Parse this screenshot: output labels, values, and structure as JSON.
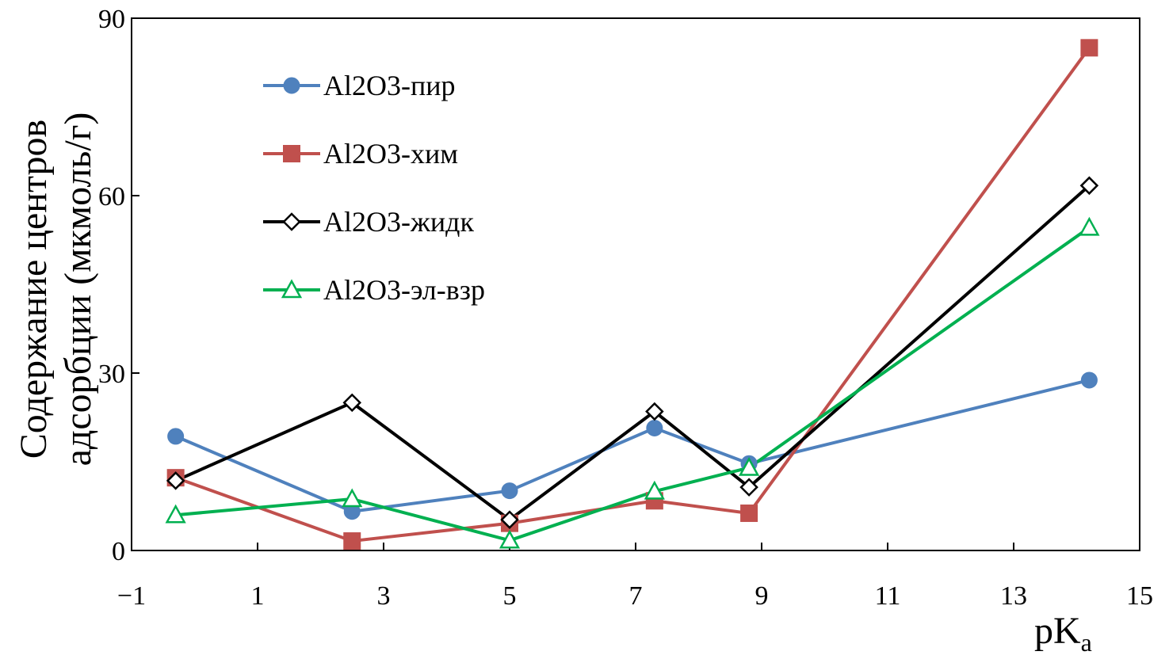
{
  "chart_data": {
    "type": "line",
    "title": "",
    "xlabel_main": "pK",
    "xlabel_sub": "a",
    "ylabel_lines": [
      "Содержание центров",
      "адсорбции (мкмоль/г)"
    ],
    "xlim": [
      -1,
      15
    ],
    "ylim": [
      0,
      90
    ],
    "xticks": [
      -1,
      1,
      3,
      5,
      7,
      9,
      11,
      13,
      15
    ],
    "xtick_labels": [
      "−1",
      "1",
      "3",
      "5",
      "7",
      "9",
      "11",
      "13",
      "15"
    ],
    "yticks": [
      0,
      30,
      60,
      90
    ],
    "ytick_labels": [
      "0",
      "30",
      "60",
      "90"
    ],
    "grid": false,
    "legend_position": "top-left",
    "series": [
      {
        "name": "Al2O3-пир",
        "color": "#4F81BD",
        "marker": "circle",
        "x": [
          -0.3,
          2.5,
          5.0,
          7.3,
          8.8,
          14.2
        ],
        "y": [
          19.3,
          6.6,
          10.1,
          20.7,
          14.7,
          28.8
        ]
      },
      {
        "name": "Al2O3-хим",
        "color": "#C0504D",
        "marker": "square",
        "x": [
          -0.3,
          2.5,
          5.0,
          7.3,
          8.8,
          14.2
        ],
        "y": [
          12.3,
          1.6,
          4.6,
          8.4,
          6.3,
          85.0
        ]
      },
      {
        "name": "Al2O3-жидк",
        "color": "#000000",
        "marker": "diamond-open",
        "x": [
          -0.3,
          2.5,
          5.0,
          7.3,
          8.8,
          14.2
        ],
        "y": [
          11.8,
          25.0,
          5.2,
          23.5,
          10.7,
          61.7
        ]
      },
      {
        "name": "Al2O3-эл-взр",
        "color": "#00B050",
        "marker": "triangle-open",
        "x": [
          -0.3,
          2.5,
          5.0,
          7.3,
          8.8,
          14.2
        ],
        "y": [
          6.0,
          8.7,
          1.7,
          10.0,
          14.0,
          54.6
        ]
      }
    ]
  }
}
